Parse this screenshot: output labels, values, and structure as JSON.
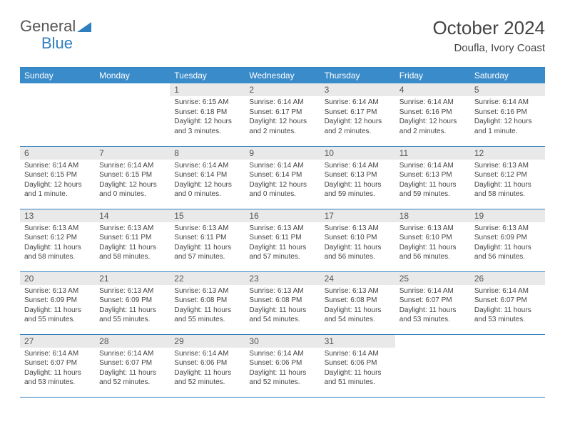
{
  "logo": {
    "text_gray": "General",
    "text_blue": "Blue"
  },
  "title": "October 2024",
  "location": "Doufla, Ivory Coast",
  "colors": {
    "header_bg": "#3a8bc9",
    "header_text": "#ffffff",
    "daynum_bg": "#e9e9e9",
    "border": "#2f7fbf",
    "body_text": "#444444"
  },
  "day_headers": [
    "Sunday",
    "Monday",
    "Tuesday",
    "Wednesday",
    "Thursday",
    "Friday",
    "Saturday"
  ],
  "weeks": [
    [
      {
        "n": "",
        "sr": "",
        "ss": "",
        "dl": ""
      },
      {
        "n": "",
        "sr": "",
        "ss": "",
        "dl": ""
      },
      {
        "n": "1",
        "sr": "6:15 AM",
        "ss": "6:18 PM",
        "dl": "12 hours and 3 minutes."
      },
      {
        "n": "2",
        "sr": "6:14 AM",
        "ss": "6:17 PM",
        "dl": "12 hours and 2 minutes."
      },
      {
        "n": "3",
        "sr": "6:14 AM",
        "ss": "6:17 PM",
        "dl": "12 hours and 2 minutes."
      },
      {
        "n": "4",
        "sr": "6:14 AM",
        "ss": "6:16 PM",
        "dl": "12 hours and 2 minutes."
      },
      {
        "n": "5",
        "sr": "6:14 AM",
        "ss": "6:16 PM",
        "dl": "12 hours and 1 minute."
      }
    ],
    [
      {
        "n": "6",
        "sr": "6:14 AM",
        "ss": "6:15 PM",
        "dl": "12 hours and 1 minute."
      },
      {
        "n": "7",
        "sr": "6:14 AM",
        "ss": "6:15 PM",
        "dl": "12 hours and 0 minutes."
      },
      {
        "n": "8",
        "sr": "6:14 AM",
        "ss": "6:14 PM",
        "dl": "12 hours and 0 minutes."
      },
      {
        "n": "9",
        "sr": "6:14 AM",
        "ss": "6:14 PM",
        "dl": "12 hours and 0 minutes."
      },
      {
        "n": "10",
        "sr": "6:14 AM",
        "ss": "6:13 PM",
        "dl": "11 hours and 59 minutes."
      },
      {
        "n": "11",
        "sr": "6:14 AM",
        "ss": "6:13 PM",
        "dl": "11 hours and 59 minutes."
      },
      {
        "n": "12",
        "sr": "6:13 AM",
        "ss": "6:12 PM",
        "dl": "11 hours and 58 minutes."
      }
    ],
    [
      {
        "n": "13",
        "sr": "6:13 AM",
        "ss": "6:12 PM",
        "dl": "11 hours and 58 minutes."
      },
      {
        "n": "14",
        "sr": "6:13 AM",
        "ss": "6:11 PM",
        "dl": "11 hours and 58 minutes."
      },
      {
        "n": "15",
        "sr": "6:13 AM",
        "ss": "6:11 PM",
        "dl": "11 hours and 57 minutes."
      },
      {
        "n": "16",
        "sr": "6:13 AM",
        "ss": "6:11 PM",
        "dl": "11 hours and 57 minutes."
      },
      {
        "n": "17",
        "sr": "6:13 AM",
        "ss": "6:10 PM",
        "dl": "11 hours and 56 minutes."
      },
      {
        "n": "18",
        "sr": "6:13 AM",
        "ss": "6:10 PM",
        "dl": "11 hours and 56 minutes."
      },
      {
        "n": "19",
        "sr": "6:13 AM",
        "ss": "6:09 PM",
        "dl": "11 hours and 56 minutes."
      }
    ],
    [
      {
        "n": "20",
        "sr": "6:13 AM",
        "ss": "6:09 PM",
        "dl": "11 hours and 55 minutes."
      },
      {
        "n": "21",
        "sr": "6:13 AM",
        "ss": "6:09 PM",
        "dl": "11 hours and 55 minutes."
      },
      {
        "n": "22",
        "sr": "6:13 AM",
        "ss": "6:08 PM",
        "dl": "11 hours and 55 minutes."
      },
      {
        "n": "23",
        "sr": "6:13 AM",
        "ss": "6:08 PM",
        "dl": "11 hours and 54 minutes."
      },
      {
        "n": "24",
        "sr": "6:13 AM",
        "ss": "6:08 PM",
        "dl": "11 hours and 54 minutes."
      },
      {
        "n": "25",
        "sr": "6:14 AM",
        "ss": "6:07 PM",
        "dl": "11 hours and 53 minutes."
      },
      {
        "n": "26",
        "sr": "6:14 AM",
        "ss": "6:07 PM",
        "dl": "11 hours and 53 minutes."
      }
    ],
    [
      {
        "n": "27",
        "sr": "6:14 AM",
        "ss": "6:07 PM",
        "dl": "11 hours and 53 minutes."
      },
      {
        "n": "28",
        "sr": "6:14 AM",
        "ss": "6:07 PM",
        "dl": "11 hours and 52 minutes."
      },
      {
        "n": "29",
        "sr": "6:14 AM",
        "ss": "6:06 PM",
        "dl": "11 hours and 52 minutes."
      },
      {
        "n": "30",
        "sr": "6:14 AM",
        "ss": "6:06 PM",
        "dl": "11 hours and 52 minutes."
      },
      {
        "n": "31",
        "sr": "6:14 AM",
        "ss": "6:06 PM",
        "dl": "11 hours and 51 minutes."
      },
      {
        "n": "",
        "sr": "",
        "ss": "",
        "dl": ""
      },
      {
        "n": "",
        "sr": "",
        "ss": "",
        "dl": ""
      }
    ]
  ],
  "labels": {
    "sunrise": "Sunrise: ",
    "sunset": "Sunset: ",
    "daylight": "Daylight: "
  }
}
